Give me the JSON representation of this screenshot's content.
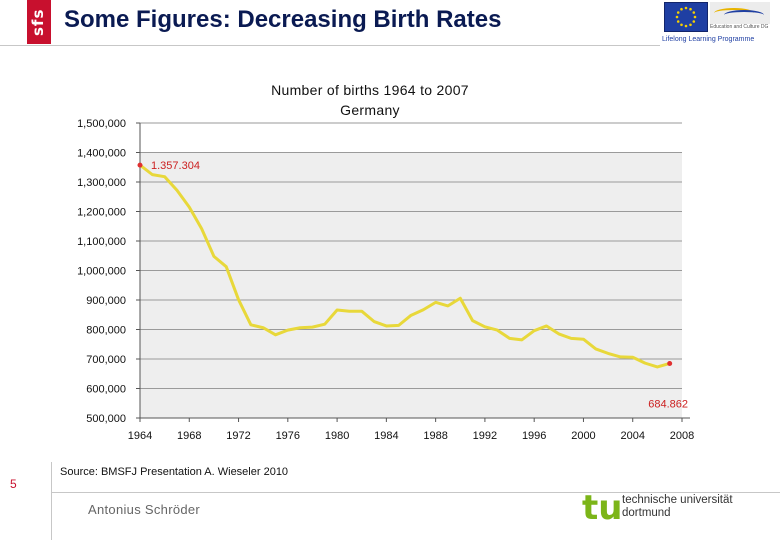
{
  "slide": {
    "brand": "sfs",
    "title": "Some Figures: Decreasing Birth Rates",
    "page_number": "5",
    "source": "Source: BMSFJ Presentation A. Wieseler 2010",
    "author": "Antonius Schröder"
  },
  "eu_logo": {
    "small_text": "Education and Culture DG",
    "programme": "Lifelong Learning Programme"
  },
  "tu_logo": {
    "mark": "tu",
    "line1": "technische universität",
    "line2": "dortmund"
  },
  "chart_data": {
    "type": "line",
    "title_line1": "Number of births 1964 to 2007",
    "title_line2": "Germany",
    "xlabel": "",
    "ylabel": "",
    "xlim": [
      1964,
      2008
    ],
    "ylim": [
      500000,
      1500000
    ],
    "x_ticks": [
      "1964",
      "1968",
      "1972",
      "1976",
      "1980",
      "1984",
      "1988",
      "1992",
      "1996",
      "2000",
      "2004",
      "2008"
    ],
    "y_ticks": [
      "500,000",
      "600,000",
      "700,000",
      "800,000",
      "900,000",
      "1,000,000",
      "1,100,000",
      "1,200,000",
      "1,300,000",
      "1,400,000",
      "1,500,000"
    ],
    "grid": "horizontal",
    "plot_background": "#eeeeee",
    "line_color": "#e8d83a",
    "marker_color": "#e03030",
    "annotations": [
      {
        "text": "1.357.304",
        "x": 1964,
        "y": 1357304,
        "color": "#cc2020"
      },
      {
        "text": "684.862",
        "x": 2007,
        "y": 684862,
        "color": "#cc2020"
      }
    ],
    "series": [
      {
        "x": [
          1964,
          1965,
          1966,
          1967,
          1968,
          1969,
          1970,
          1971,
          1972,
          1973,
          1974,
          1975,
          1976,
          1977,
          1978,
          1979,
          1980,
          1981,
          1982,
          1983,
          1984,
          1985,
          1986,
          1987,
          1988,
          1989,
          1990,
          1991,
          1992,
          1993,
          1994,
          1995,
          1996,
          1997,
          1998,
          1999,
          2000,
          2001,
          2002,
          2003,
          2004,
          2005,
          2006,
          2007
        ],
        "values": [
          1357304,
          1325000,
          1318000,
          1272000,
          1215000,
          1142000,
          1048000,
          1013000,
          901000,
          816000,
          806000,
          782000,
          798000,
          806000,
          808000,
          818000,
          866000,
          862000,
          862000,
          827000,
          812000,
          814000,
          848000,
          867000,
          892000,
          880000,
          906000,
          830000,
          809000,
          798000,
          770000,
          765000,
          796000,
          812000,
          785000,
          770000,
          767000,
          734000,
          719000,
          707000,
          706000,
          686000,
          673000,
          684862
        ]
      }
    ]
  }
}
